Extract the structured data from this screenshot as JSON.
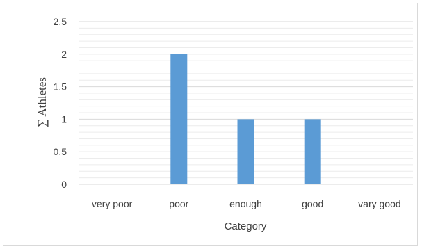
{
  "chart_data": {
    "type": "bar",
    "title": "",
    "xlabel": "Category",
    "ylabel": "∑ Athletes",
    "categories": [
      "very poor",
      "poor",
      "enough",
      "good",
      "vary good"
    ],
    "values": [
      0,
      2,
      1,
      1,
      0
    ],
    "ylim": [
      0,
      2.5
    ],
    "yticks": [
      0,
      0.5,
      1,
      1.5,
      2,
      2.5
    ],
    "ytick_labels": [
      "0",
      "0.5",
      "1",
      "1.5",
      "2",
      "2.5"
    ],
    "grid": true,
    "legend": "none",
    "bar_color": "#5b9bd5",
    "grid_color": "#d9d9d9"
  }
}
